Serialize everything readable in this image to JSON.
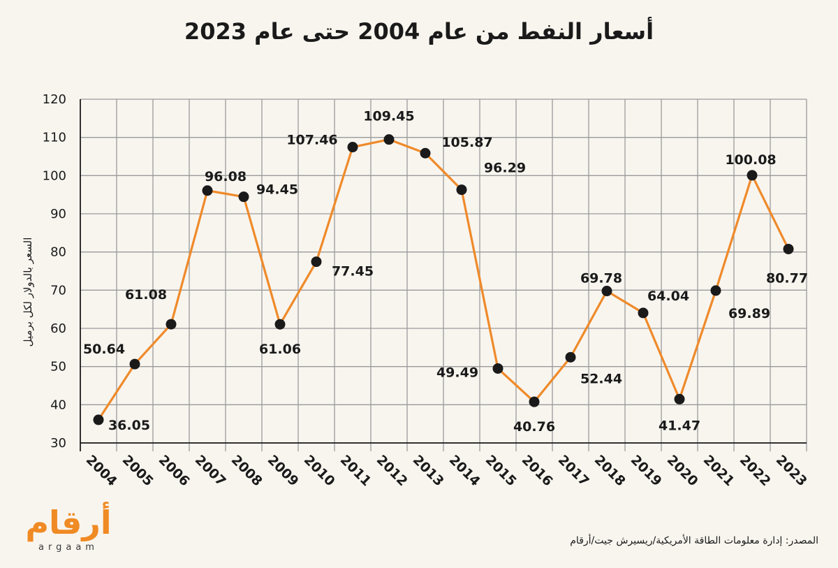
{
  "chart_data": {
    "type": "line",
    "title": "أسعار النفط من عام 2004 حتى عام 2023",
    "ylabel": "السعر بالدولار لكل برميل",
    "xlabel": "",
    "ylim": [
      30,
      120
    ],
    "yticks": [
      30,
      40,
      50,
      60,
      70,
      80,
      90,
      100,
      110,
      120
    ],
    "categories": [
      "2004",
      "2005",
      "2006",
      "2007",
      "2008",
      "2009",
      "2010",
      "2011",
      "2012",
      "2013",
      "2014",
      "2015",
      "2016",
      "2017",
      "2018",
      "2019",
      "2020",
      "2021",
      "2022",
      "2023"
    ],
    "values": [
      36.05,
      50.64,
      61.08,
      96.08,
      94.45,
      61.06,
      77.45,
      107.46,
      109.45,
      105.87,
      96.29,
      49.49,
      40.76,
      52.44,
      69.78,
      64.04,
      41.47,
      69.89,
      100.08,
      80.77
    ],
    "grid": true,
    "line_color": "#ef8a2a",
    "marker_color": "#1a1a1a",
    "grid_color": "#9a9a9a"
  },
  "source": "المصدر: إدارة معلومات الطاقة الأمريكية/ريسيرش جيت/أرقام",
  "logo": {
    "arabic": "أرقام",
    "latin": "argaam"
  }
}
